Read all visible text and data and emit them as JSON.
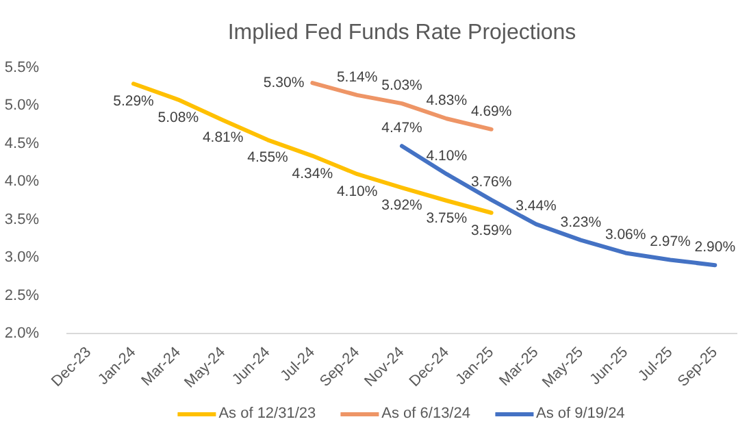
{
  "chart_data": {
    "type": "line",
    "title": "Implied Fed Funds Rate Projections",
    "categories": [
      "Dec-23",
      "Jan-24",
      "Mar-24",
      "May-24",
      "Jun-24",
      "Jul-24",
      "Sep-24",
      "Nov-24",
      "Dec-24",
      "Jan-25",
      "Mar-25",
      "May-25",
      "Jun-25",
      "Jul-25",
      "Sep-25"
    ],
    "series": [
      {
        "name": "As of 12/31/23",
        "color": "#ffc000",
        "values": [
          null,
          5.29,
          5.08,
          4.81,
          4.55,
          4.34,
          4.1,
          3.92,
          3.75,
          3.59,
          null,
          null,
          null,
          null,
          null
        ],
        "value_labels": [
          null,
          "5.29%",
          "5.08%",
          "4.81%",
          "4.55%",
          "4.34%",
          "4.10%",
          "3.92%",
          "3.75%",
          "3.59%",
          null,
          null,
          null,
          null,
          null
        ]
      },
      {
        "name": "As of 6/13/24",
        "color": "#ee9566",
        "values": [
          null,
          null,
          null,
          null,
          null,
          5.3,
          5.14,
          5.03,
          4.83,
          4.69,
          null,
          null,
          null,
          null,
          null
        ],
        "value_labels": [
          null,
          null,
          null,
          null,
          null,
          "5.30%",
          "5.14%",
          "5.03%",
          "4.83%",
          "4.69%",
          null,
          null,
          null,
          null,
          null
        ]
      },
      {
        "name": "As of 9/19/24",
        "color": "#4472c4",
        "values": [
          null,
          null,
          null,
          null,
          null,
          null,
          null,
          4.47,
          4.1,
          3.76,
          3.44,
          3.23,
          3.06,
          2.97,
          2.9
        ],
        "value_labels": [
          null,
          null,
          null,
          null,
          null,
          null,
          null,
          "4.47%",
          "4.10%",
          "3.76%",
          "3.44%",
          "3.23%",
          "3.06%",
          "2.97%",
          "2.90%"
        ]
      }
    ],
    "ylim": [
      2.0,
      5.5
    ],
    "yticks": [
      {
        "value": 2.0,
        "label": "2.0%"
      },
      {
        "value": 2.5,
        "label": "2.5%"
      },
      {
        "value": 3.0,
        "label": "3.0%"
      },
      {
        "value": 3.5,
        "label": "3.5%"
      },
      {
        "value": 4.0,
        "label": "4.0%"
      },
      {
        "value": 4.5,
        "label": "4.5%"
      },
      {
        "value": 5.0,
        "label": "5.0%"
      },
      {
        "value": 5.5,
        "label": "5.5%"
      }
    ],
    "grid": false,
    "legend": "bottom"
  }
}
